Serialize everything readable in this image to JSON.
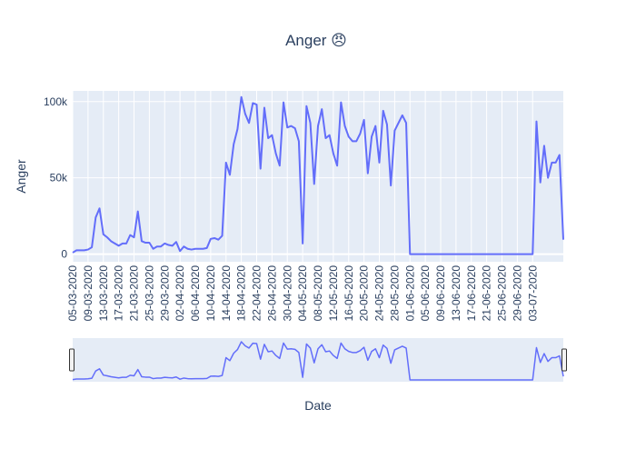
{
  "chart_data": {
    "type": "line",
    "title": "Anger 😠",
    "xlabel": "Date",
    "ylabel": "Anger",
    "x_start": "05-03-2020",
    "x_step_days": 1,
    "ylim": [
      -5000,
      107000
    ],
    "y_ticks": [
      0,
      50000,
      100000
    ],
    "y_tick_labels": [
      "0",
      "50k",
      "100k"
    ],
    "x_tick_labels": [
      "05-03-2020",
      "09-03-2020",
      "13-03-2020",
      "17-03-2020",
      "21-03-2020",
      "25-03-2020",
      "29-03-2020",
      "02-04-2020",
      "06-04-2020",
      "10-04-2020",
      "14-04-2020",
      "18-04-2020",
      "22-04-2020",
      "26-04-2020",
      "30-04-2020",
      "04-05-2020",
      "08-05-2020",
      "12-05-2020",
      "16-05-2020",
      "20-05-2020",
      "24-05-2020",
      "28-05-2020",
      "01-06-2020",
      "05-06-2020",
      "09-06-2020",
      "13-06-2020",
      "17-06-2020",
      "21-06-2020",
      "25-06-2020",
      "29-06-2020",
      "03-07-2020"
    ],
    "grid": true,
    "legend": "none",
    "line_color": "#636efa",
    "rangeslider": true,
    "series": [
      {
        "values": [
          1000,
          2500,
          2500,
          2500,
          3000,
          4500,
          24000,
          30000,
          13000,
          11000,
          8500,
          7000,
          5500,
          7000,
          7000,
          12500,
          11000,
          28000,
          8500,
          7500,
          7500,
          3500,
          5000,
          5000,
          7000,
          6000,
          5500,
          8000,
          2000,
          5000,
          3500,
          3000,
          3500,
          3500,
          3500,
          4000,
          10000,
          10500,
          9500,
          12000,
          60000,
          52000,
          72000,
          82000,
          103000,
          92000,
          86000,
          99000,
          98000,
          56000,
          96000,
          76000,
          78000,
          66000,
          58000,
          99500,
          83000,
          84000,
          82500,
          74000,
          7000,
          97000,
          86000,
          46000,
          84000,
          95000,
          76000,
          78000,
          66000,
          58000,
          99500,
          84000,
          77000,
          74000,
          74000,
          79000,
          88000,
          53000,
          77000,
          84000,
          60000,
          94000,
          85000,
          45000,
          81000,
          86000,
          91000,
          86000,
          0,
          0,
          0,
          0,
          0,
          0,
          0,
          0,
          0,
          0,
          0,
          0,
          0,
          0,
          0,
          0,
          0,
          0,
          0,
          0,
          0,
          0,
          0,
          0,
          0,
          0,
          0,
          0,
          0,
          0,
          0,
          0,
          0,
          87000,
          47000,
          71000,
          50000,
          60000,
          60000,
          65000,
          9500
        ]
      }
    ]
  }
}
